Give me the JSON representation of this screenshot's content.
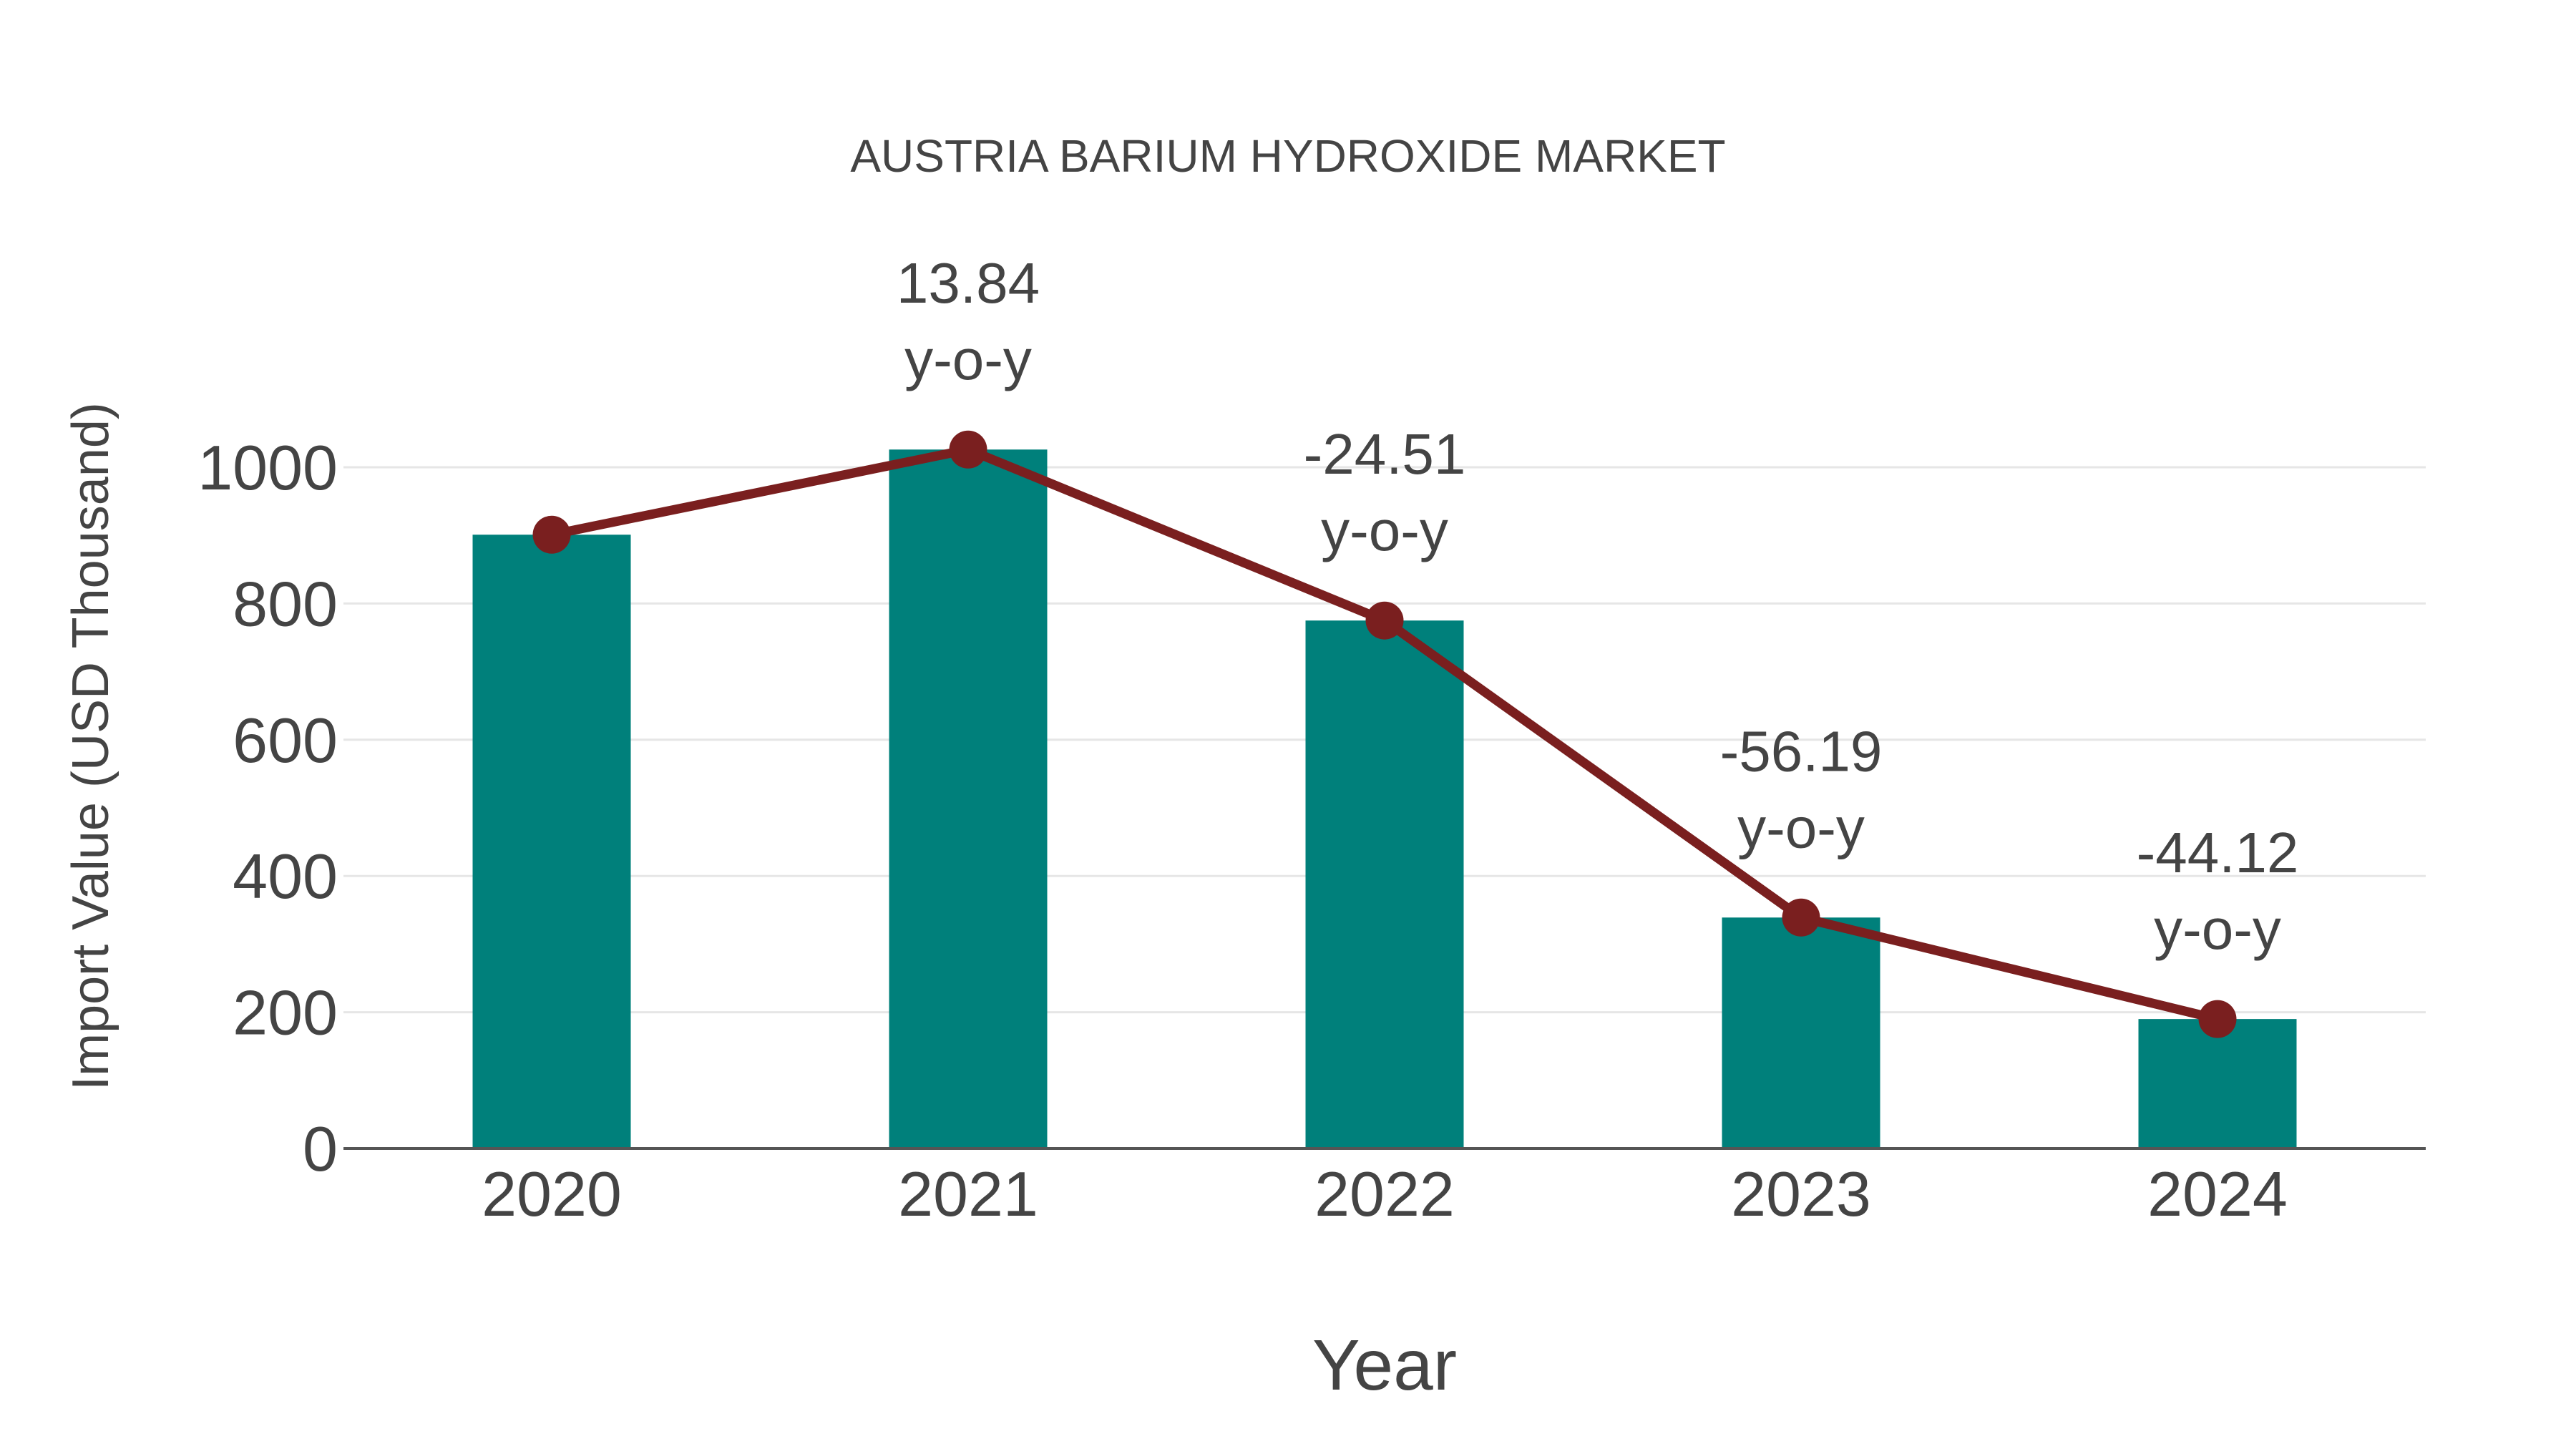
{
  "chart_data": {
    "type": "bar",
    "title": "AUSTRIA BARIUM HYDROXIDE MARKET",
    "xlabel": "Year",
    "ylabel": "Import Value (USD Thousand)",
    "categories": [
      "2020",
      "2021",
      "2022",
      "2023",
      "2024"
    ],
    "series": [
      {
        "name": "Import Value",
        "type": "bar",
        "color": "#00807b",
        "values": [
          901,
          1026,
          775,
          339,
          190
        ]
      },
      {
        "name": "Trend",
        "type": "line",
        "color": "#7a1f1f",
        "values": [
          901,
          1026,
          775,
          339,
          190
        ]
      }
    ],
    "annotations": [
      {
        "category": "2021",
        "value": "13.84",
        "suffix": "y-o-y"
      },
      {
        "category": "2022",
        "value": "-24.51",
        "suffix": "y-o-y"
      },
      {
        "category": "2023",
        "value": "-56.19",
        "suffix": "y-o-y"
      },
      {
        "category": "2024",
        "value": "-44.12",
        "suffix": "y-o-y"
      }
    ],
    "yticks": [
      0,
      200,
      400,
      600,
      800,
      1000
    ],
    "ylim": [
      0,
      1100
    ],
    "grid": true,
    "legend": "none"
  }
}
